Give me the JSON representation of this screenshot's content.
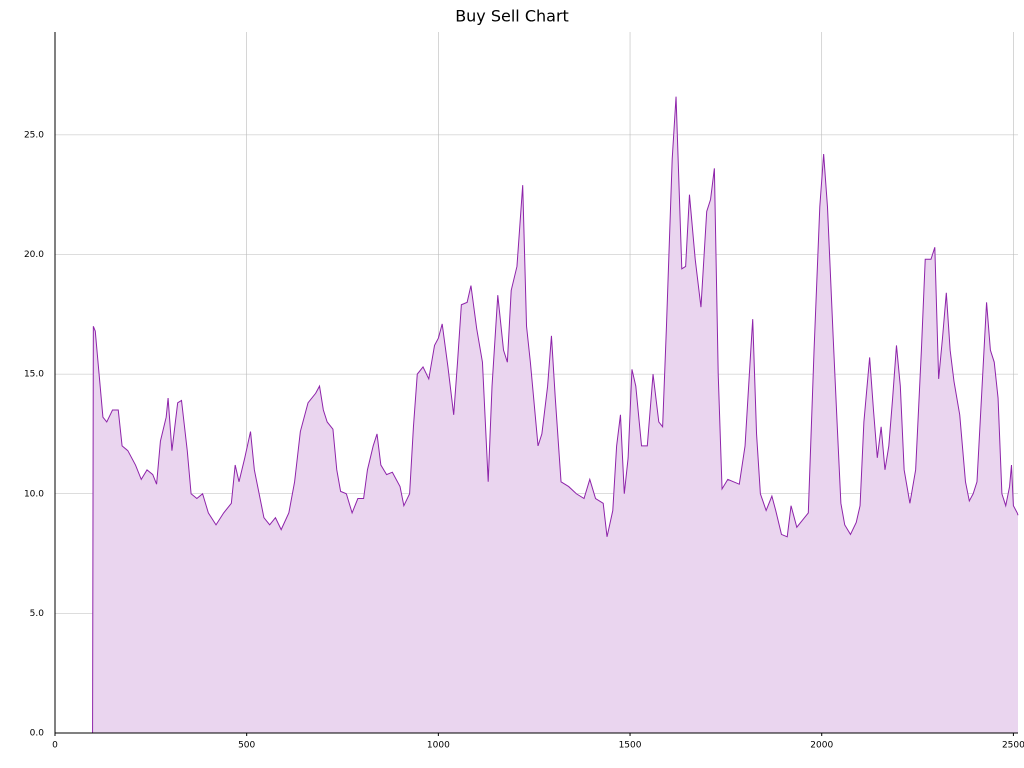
{
  "chart_data": {
    "type": "area",
    "title": "Buy Sell Chart",
    "x": [
      0,
      98,
      100,
      105,
      115,
      125,
      135,
      150,
      165,
      175,
      190,
      210,
      225,
      240,
      255,
      265,
      275,
      290,
      295,
      305,
      320,
      330,
      345,
      355,
      370,
      385,
      400,
      420,
      440,
      460,
      470,
      480,
      495,
      510,
      520,
      545,
      560,
      575,
      590,
      610,
      625,
      640,
      660,
      680,
      690,
      700,
      710,
      725,
      735,
      745,
      760,
      775,
      790,
      805,
      815,
      830,
      840,
      850,
      865,
      880,
      900,
      910,
      925,
      935,
      945,
      960,
      975,
      990,
      1000,
      1010,
      1025,
      1040,
      1050,
      1060,
      1075,
      1085,
      1100,
      1115,
      1130,
      1140,
      1155,
      1170,
      1180,
      1190,
      1205,
      1220,
      1230,
      1240,
      1260,
      1270,
      1285,
      1295,
      1305,
      1320,
      1340,
      1360,
      1380,
      1395,
      1410,
      1430,
      1440,
      1455,
      1465,
      1475,
      1485,
      1495,
      1505,
      1515,
      1530,
      1545,
      1560,
      1575,
      1585,
      1595,
      1610,
      1620,
      1635,
      1645,
      1655,
      1670,
      1685,
      1700,
      1710,
      1720,
      1730,
      1740,
      1755,
      1770,
      1785,
      1800,
      1815,
      1820,
      1830,
      1840,
      1855,
      1870,
      1880,
      1895,
      1910,
      1920,
      1935,
      1950,
      1965,
      1980,
      1995,
      2005,
      2015,
      2030,
      2040,
      2050,
      2060,
      2075,
      2090,
      2100,
      2110,
      2125,
      2135,
      2145,
      2155,
      2165,
      2175,
      2185,
      2195,
      2205,
      2215,
      2230,
      2245,
      2260,
      2270,
      2285,
      2295,
      2305,
      2315,
      2325,
      2335,
      2345,
      2360,
      2375,
      2385,
      2395,
      2405,
      2420,
      2430,
      2440,
      2450,
      2460,
      2470,
      2480,
      2490,
      2495,
      2500,
      2510,
      2512
    ],
    "y": [
      0,
      0,
      17.0,
      16.8,
      15,
      13.2,
      13,
      13.5,
      13.5,
      12,
      11.8,
      11.2,
      10.6,
      11,
      10.8,
      10.4,
      12.2,
      13.2,
      14,
      11.8,
      13.8,
      13.9,
      11.8,
      10,
      9.8,
      10,
      9.2,
      8.7,
      9.2,
      9.6,
      11.2,
      10.5,
      11.5,
      12.6,
      11,
      9,
      8.7,
      9,
      8.5,
      9.2,
      10.5,
      12.6,
      13.8,
      14.2,
      14.5,
      13.5,
      13.0,
      12.7,
      11,
      10.1,
      10,
      9.2,
      9.8,
      9.8,
      11,
      12,
      12.5,
      11.2,
      10.8,
      10.9,
      10.3,
      9.5,
      10,
      12.8,
      15,
      15.3,
      14.8,
      16.2,
      16.5,
      17.1,
      15.3,
      13.3,
      15.5,
      17.9,
      18,
      18.7,
      16.9,
      15.5,
      10.5,
      14.5,
      18.3,
      16,
      15.5,
      18.5,
      19.5,
      22.9,
      17,
      15.5,
      12,
      12.5,
      14.5,
      16.6,
      14,
      10.5,
      10.3,
      10,
      9.8,
      10.6,
      9.8,
      9.6,
      8.2,
      9.3,
      12,
      13.3,
      10,
      11.5,
      15.2,
      14.5,
      12,
      12,
      15,
      13,
      12.8,
      17,
      24,
      26.6,
      19.4,
      19.5,
      22.5,
      19.8,
      17.8,
      21.8,
      22.3,
      23.6,
      15,
      10.2,
      10.6,
      10.5,
      10.4,
      12,
      16,
      17.3,
      12.5,
      10,
      9.3,
      9.9,
      9.3,
      8.3,
      8.2,
      9.5,
      8.6,
      8.9,
      9.2,
      16,
      22,
      24.2,
      22,
      16.5,
      13,
      9.6,
      8.7,
      8.3,
      8.8,
      9.5,
      13,
      15.7,
      13.5,
      11.5,
      12.8,
      11,
      12,
      14,
      16.2,
      14.5,
      11,
      9.6,
      11,
      16,
      19.8,
      19.8,
      20.3,
      14.8,
      16.5,
      18.4,
      16,
      14.7,
      13.3,
      10.5,
      9.7,
      10,
      10.5,
      15,
      18,
      16,
      15.5,
      14,
      10,
      9.5,
      10.3,
      11.2,
      9.5,
      9.2,
      9.1
    ],
    "xlim": [
      0,
      2512
    ],
    "ylim": [
      0,
      29.3
    ],
    "xticks": [
      0,
      500,
      1000,
      1500,
      2000,
      2500
    ],
    "yticks": [
      {
        "value": 0,
        "label": "0.0"
      },
      {
        "value": 5,
        "label": "5.0"
      },
      {
        "value": 10,
        "label": "10.0"
      },
      {
        "value": 15,
        "label": "15.0"
      },
      {
        "value": 20,
        "label": "20.0"
      },
      {
        "value": 25,
        "label": "25.0"
      }
    ],
    "color": "#8e24aa",
    "fill": "#ead5ef",
    "grid": true
  }
}
